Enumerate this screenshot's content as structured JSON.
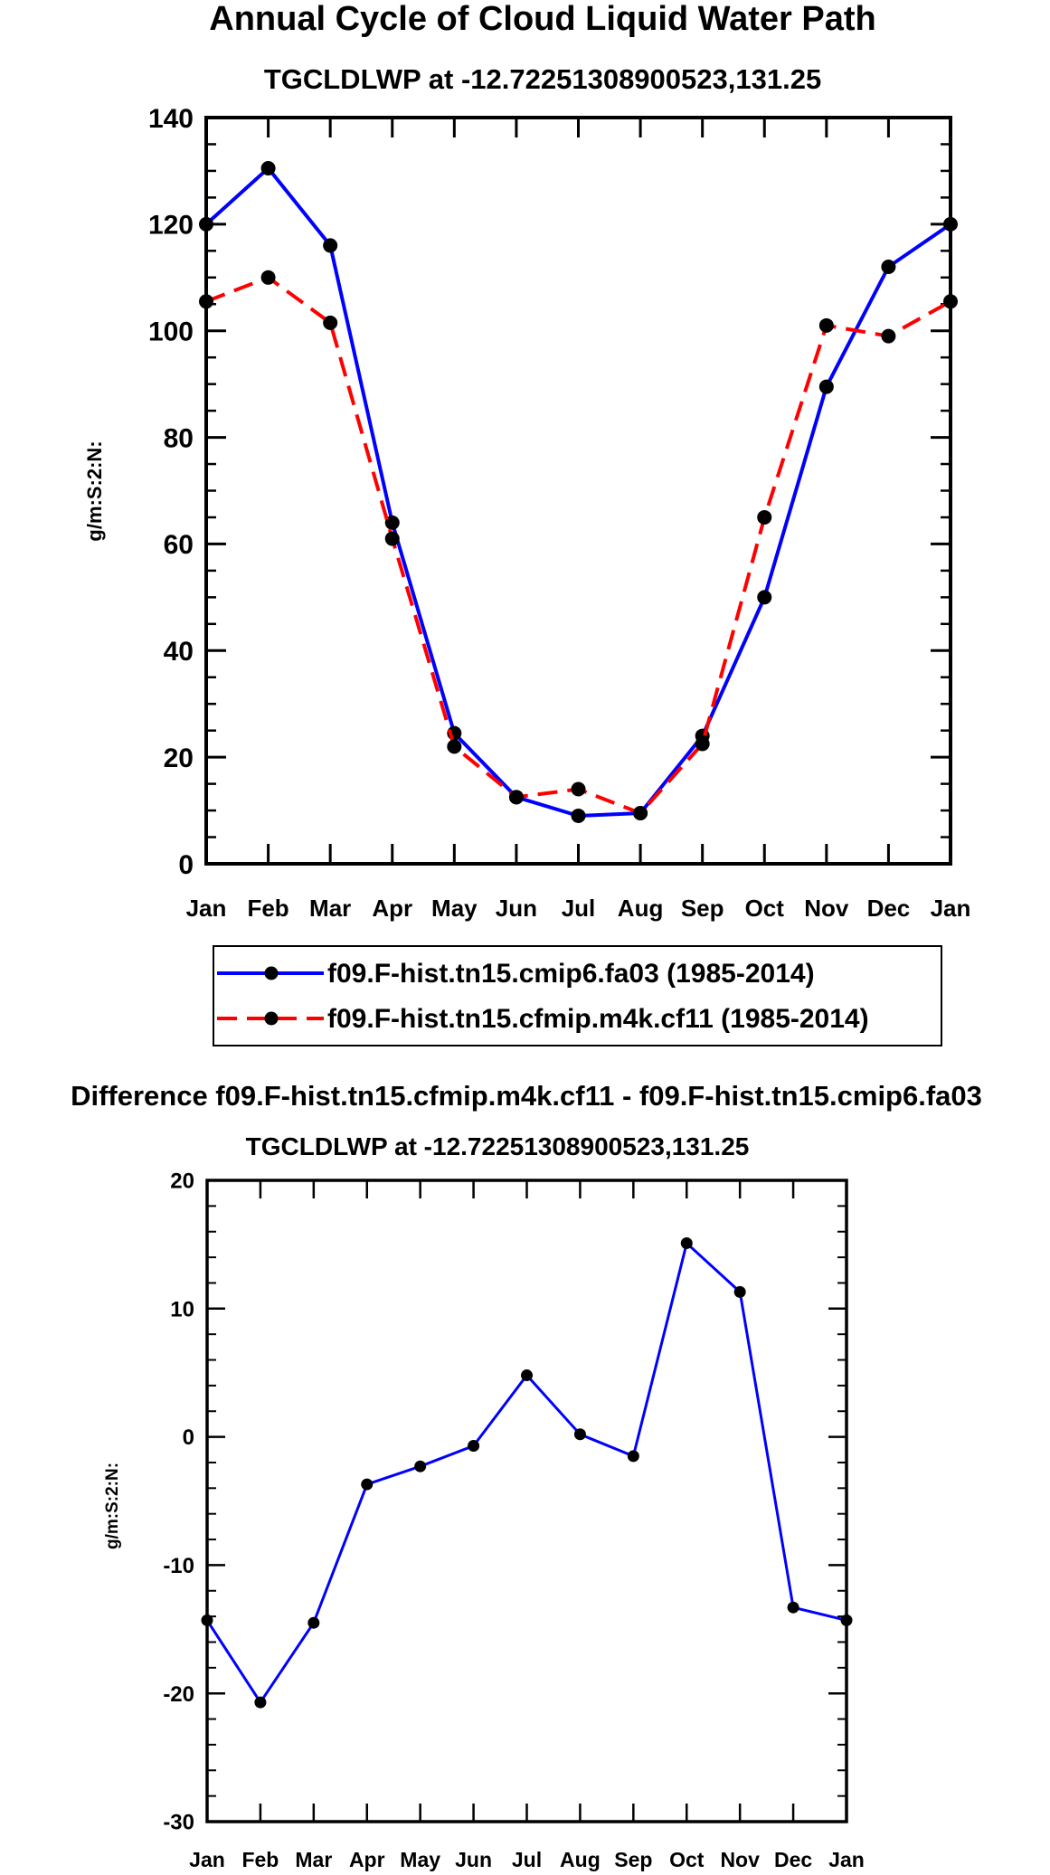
{
  "chart_data": [
    {
      "type": "line",
      "title": "Annual Cycle of Cloud Liquid Water Path",
      "subtitle": "TGCLDLWP at -12.72251308900523,131.25",
      "xlabel": "",
      "ylabel": "g/m:S:2:N:",
      "categories": [
        "Jan",
        "Feb",
        "Mar",
        "Apr",
        "May",
        "Jun",
        "Jul",
        "Aug",
        "Sep",
        "Oct",
        "Nov",
        "Dec",
        "Jan"
      ],
      "ylim": [
        0,
        140
      ],
      "yticks": [
        "0",
        "20",
        "40",
        "60",
        "80",
        "100",
        "120",
        "140"
      ],
      "grid": false,
      "legend_position": "bottom",
      "series": [
        {
          "name": "f09.F-hist.tn15.cmip6.fa03 (1985-2014)",
          "color": "#0000ff",
          "dash": "solid",
          "values": [
            120,
            130.5,
            116,
            64,
            24.5,
            12.5,
            9,
            9.5,
            24,
            50,
            89.5,
            112,
            120
          ]
        },
        {
          "name": "f09.F-hist.tn15.cfmip.m4k.cf11 (1985-2014)",
          "color": "#ff0000",
          "dash": "dashed",
          "values": [
            105.5,
            110,
            101.5,
            61,
            22,
            12.5,
            14,
            9.5,
            22.5,
            65,
            101,
            99,
            105.5
          ]
        }
      ]
    },
    {
      "type": "line",
      "title": "Difference f09.F-hist.tn15.cfmip.m4k.cf11 - f09.F-hist.tn15.cmip6.fa03",
      "subtitle": "TGCLDLWP at -12.72251308900523,131.25",
      "xlabel": "",
      "ylabel": "g/m:S:2:N:",
      "categories": [
        "Jan",
        "Feb",
        "Mar",
        "Apr",
        "May",
        "Jun",
        "Jul",
        "Aug",
        "Sep",
        "Oct",
        "Nov",
        "Dec",
        "Jan"
      ],
      "ylim": [
        -30,
        20
      ],
      "yticks": [
        "-30",
        "-20",
        "-10",
        "0",
        "10",
        "20"
      ],
      "grid": false,
      "series": [
        {
          "name": "difference",
          "color": "#0000ff",
          "dash": "solid",
          "values": [
            -14.3,
            -20.7,
            -14.5,
            -3.7,
            -2.3,
            -0.7,
            4.8,
            0.2,
            -1.5,
            15.1,
            11.3,
            -13.3,
            -14.3
          ]
        }
      ]
    }
  ]
}
